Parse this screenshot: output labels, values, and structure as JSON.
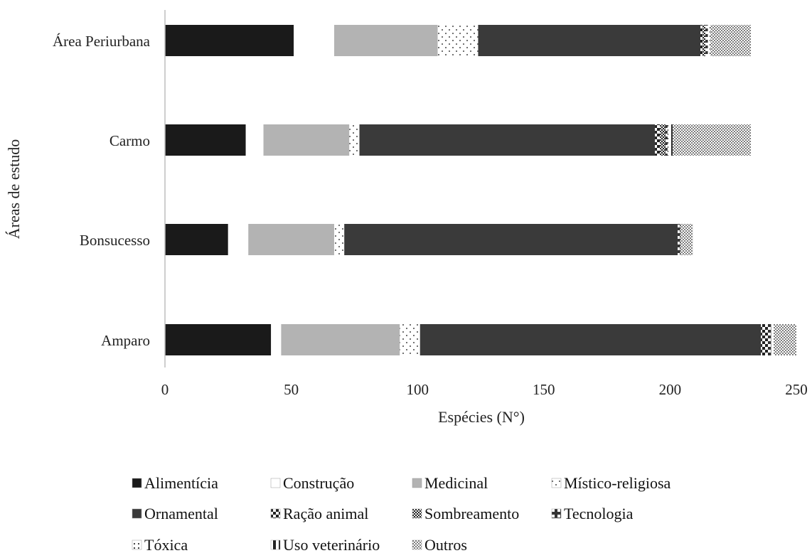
{
  "chart_data": {
    "type": "bar",
    "orientation": "horizontal",
    "stacked": true,
    "title": "",
    "xlabel": "Espécies (N°)",
    "ylabel": "Áreas de estudo",
    "xlim": [
      0,
      250
    ],
    "xticks": [
      0,
      50,
      100,
      150,
      200,
      250
    ],
    "grid": false,
    "legend_position": "bottom",
    "categories": [
      "Amparo",
      "Bonsucesso",
      "Carmo",
      "Área Periurbana"
    ],
    "series": [
      {
        "name": "Alimentícia",
        "values": [
          42,
          25,
          32,
          51
        ],
        "color": "#1a1a1a",
        "pattern": "solid"
      },
      {
        "name": "Construção",
        "values": [
          4,
          8,
          7,
          16
        ],
        "color": "#ffffff",
        "pattern": "white"
      },
      {
        "name": "Medicinal",
        "values": [
          47,
          34,
          34,
          41
        ],
        "color": "#b3b3b3",
        "pattern": "solid"
      },
      {
        "name": "Místico-religiosa",
        "values": [
          8,
          4,
          4,
          16
        ],
        "color": "#ffffff",
        "pattern": "dots-sparse"
      },
      {
        "name": "Ornamental",
        "values": [
          135,
          132,
          117,
          88
        ],
        "color": "#3a3a3a",
        "pattern": "solid"
      },
      {
        "name": "Ração animal",
        "values": [
          3,
          0,
          2,
          1
        ],
        "color": "#ffffff",
        "pattern": "checker-large"
      },
      {
        "name": "Sombreamento",
        "values": [
          0,
          0,
          2,
          1
        ],
        "color": "#444444",
        "pattern": "checker-fine"
      },
      {
        "name": "Tecnologia",
        "values": [
          1,
          1,
          1,
          1
        ],
        "color": "#333333",
        "pattern": "half-dark"
      },
      {
        "name": "Tóxica",
        "values": [
          1,
          0,
          1,
          1
        ],
        "color": "#ffffff",
        "pattern": "dots-small"
      },
      {
        "name": "Uso veterinário",
        "values": [
          0,
          0,
          1,
          0
        ],
        "color": "#ffffff",
        "pattern": "half-light"
      },
      {
        "name": "Outros",
        "values": [
          9,
          5,
          31,
          16
        ],
        "color": "#ffffff",
        "pattern": "dots-dense"
      }
    ]
  }
}
